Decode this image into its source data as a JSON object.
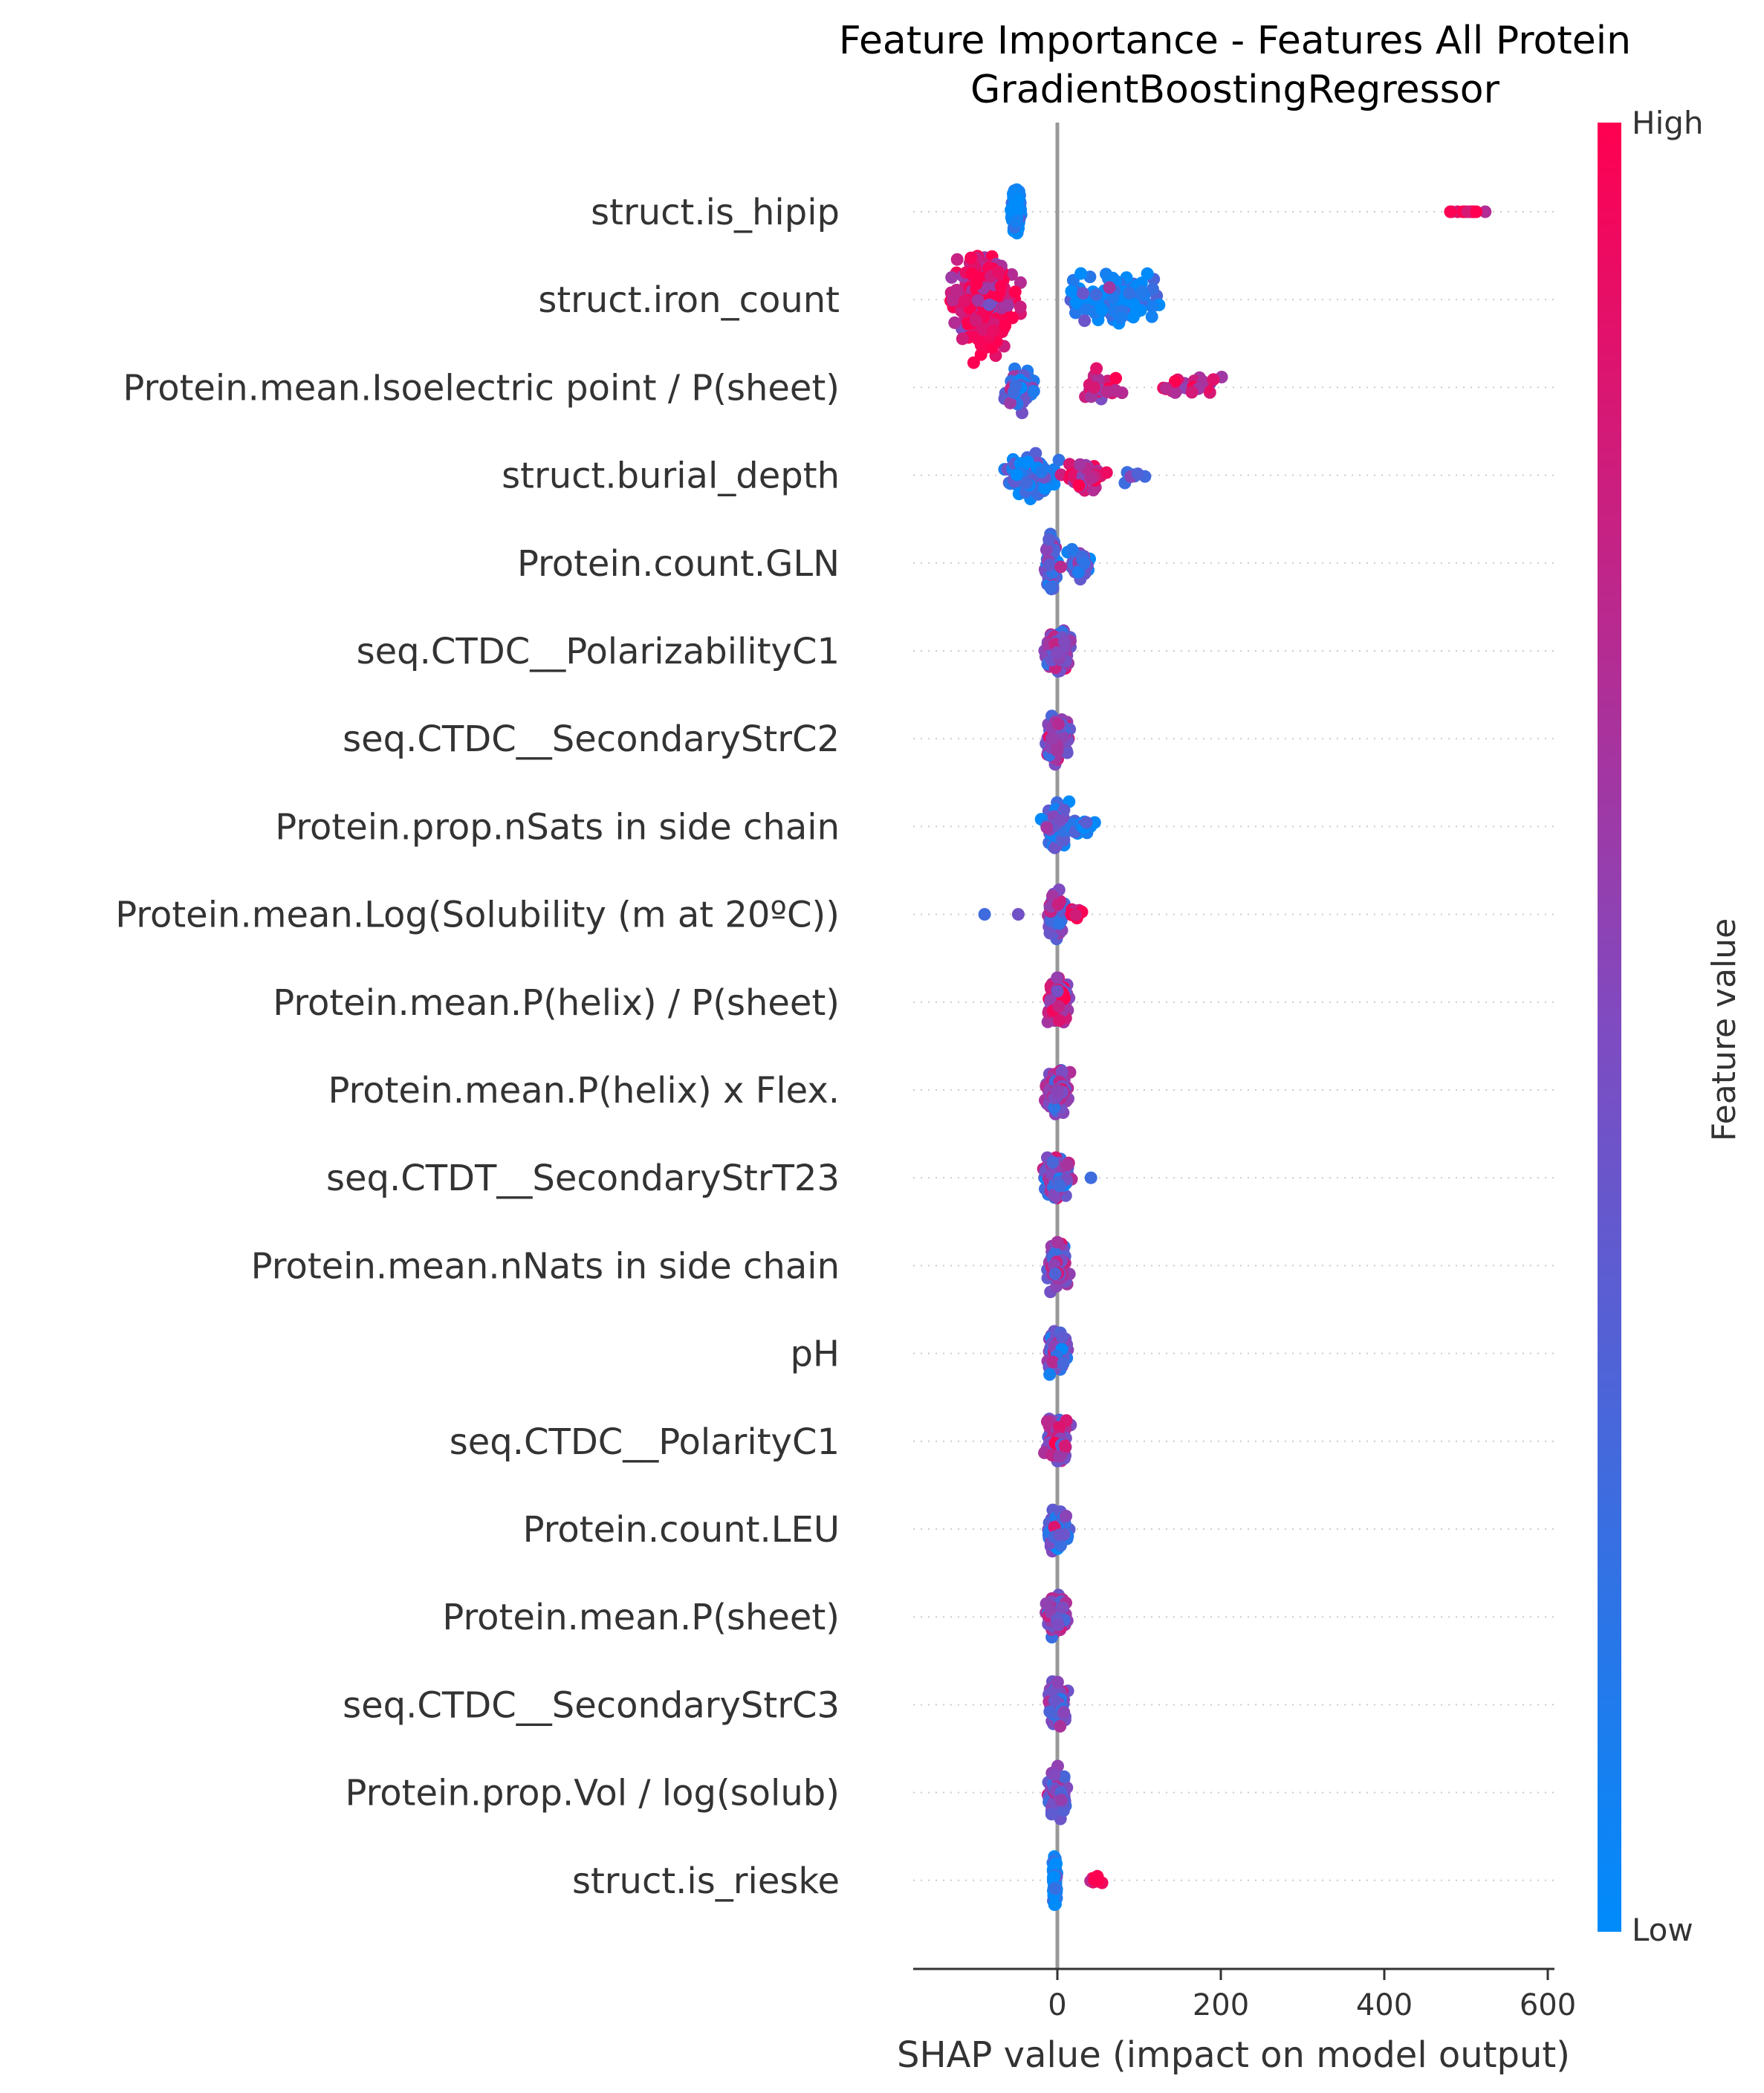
{
  "chart_data": {
    "type": "scatter",
    "title": "Feature Importance - Features All Protein",
    "subtitle": "GradientBoostingRegressor",
    "xlabel": "SHAP value (impact on model output)",
    "xlim": [
      -180,
      610
    ],
    "xticks": [
      0,
      200,
      400,
      600
    ],
    "xtick_labels": [
      "0",
      "200",
      "400",
      "600"
    ],
    "grid": false,
    "colorbar": {
      "label": "Feature value",
      "high_label": "High",
      "low_label": "Low",
      "low_color": "#008bfb",
      "high_color": "#ff0051"
    },
    "colors": {
      "low": "#008bfb",
      "high": "#ff0051",
      "zero_line": "#999999",
      "row_guide": "#cccccc"
    },
    "features": [
      {
        "name": "struct.is_hipip",
        "clusters": [
          [
            -50,
            5,
            8,
            0.0,
            150
          ],
          [
            505,
            35,
            0,
            1.0,
            14
          ]
        ]
      },
      {
        "name": "struct.iron_count",
        "clusters": [
          [
            -90,
            35,
            18,
            0.92,
            220
          ],
          [
            70,
            45,
            9,
            0.1,
            130
          ]
        ]
      },
      {
        "name": "Protein.mean.Isoelectric point / P(sheet)",
        "clusters": [
          [
            -45,
            18,
            7,
            0.3,
            90
          ],
          [
            50,
            25,
            5,
            0.85,
            40
          ],
          [
            165,
            35,
            4,
            0.75,
            30
          ]
        ]
      },
      {
        "name": "struct.burial_depth",
        "clusters": [
          [
            -30,
            30,
            7,
            0.15,
            150
          ],
          [
            35,
            25,
            5,
            0.8,
            55
          ],
          [
            90,
            20,
            3,
            0.5,
            8
          ]
        ]
      },
      {
        "name": "Protein.count.GLN",
        "clusters": [
          [
            -8,
            6,
            10,
            0.35,
            110
          ],
          [
            25,
            15,
            5,
            0.3,
            45
          ]
        ]
      },
      {
        "name": "seq.CTDC__PolarizabilityC1",
        "clusters": [
          [
            0,
            14,
            8,
            0.55,
            130
          ]
        ]
      },
      {
        "name": "seq.CTDC__SecondaryStrC2",
        "clusters": [
          [
            0,
            14,
            8,
            0.55,
            130
          ]
        ]
      },
      {
        "name": "Protein.prop.nSats in side chain",
        "clusters": [
          [
            0,
            13,
            8,
            0.35,
            110
          ],
          [
            32,
            14,
            3,
            0.1,
            20
          ]
        ]
      },
      {
        "name": "Protein.mean.Log(Solubility (m at 20ºC))",
        "clusters": [
          [
            -2,
            7,
            9,
            0.5,
            110
          ],
          [
            22,
            8,
            3,
            0.95,
            14
          ],
          [
            -90,
            2,
            0,
            0.1,
            1
          ],
          [
            -48,
            2,
            0,
            0.55,
            1
          ]
        ]
      },
      {
        "name": "Protein.mean.P(helix) / P(sheet)",
        "clusters": [
          [
            2,
            12,
            9,
            0.7,
            140
          ]
        ]
      },
      {
        "name": "Protein.mean.P(helix) x Flex.",
        "clusters": [
          [
            0,
            13,
            8,
            0.6,
            130
          ]
        ]
      },
      {
        "name": "seq.CTDT__SecondaryStrT23",
        "clusters": [
          [
            0,
            13,
            8,
            0.45,
            130
          ],
          [
            40,
            2,
            0,
            0.1,
            1
          ]
        ]
      },
      {
        "name": "Protein.mean.nNats in side chain",
        "clusters": [
          [
            0,
            11,
            8,
            0.5,
            120
          ]
        ]
      },
      {
        "name": "pH",
        "clusters": [
          [
            0,
            12,
            8,
            0.45,
            120
          ]
        ]
      },
      {
        "name": "seq.CTDC__PolarityC1",
        "clusters": [
          [
            0,
            11,
            8,
            0.6,
            120
          ]
        ]
      },
      {
        "name": "Protein.count.LEU",
        "clusters": [
          [
            0,
            11,
            8,
            0.35,
            120
          ]
        ]
      },
      {
        "name": "Protein.mean.P(sheet)",
        "clusters": [
          [
            0,
            11,
            8,
            0.55,
            120
          ]
        ]
      },
      {
        "name": "seq.CTDC__SecondaryStrC3",
        "clusters": [
          [
            0,
            9,
            8,
            0.45,
            120
          ]
        ]
      },
      {
        "name": "Protein.prop.Vol / log(solub)",
        "clusters": [
          [
            0,
            10,
            8,
            0.45,
            120
          ]
        ]
      },
      {
        "name": "struct.is_rieske",
        "clusters": [
          [
            -3,
            2,
            9,
            0.0,
            130
          ],
          [
            48,
            8,
            2,
            1.0,
            12
          ]
        ]
      }
    ]
  }
}
